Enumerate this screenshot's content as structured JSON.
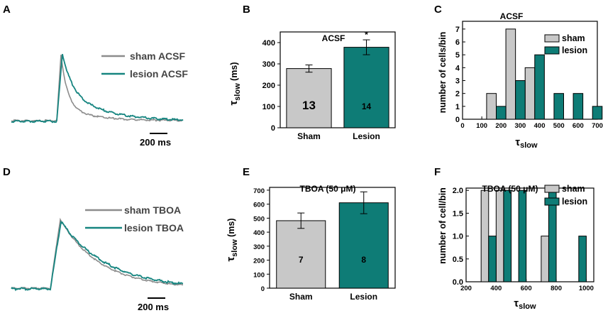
{
  "colors": {
    "sham": "#8c8c8c",
    "lesion": "#168580",
    "sham_fill": "#c8c8c8",
    "lesion_fill": "#0e7c76",
    "axis": "#000000"
  },
  "panels": {
    "A": {
      "letter": "A",
      "legend": [
        "sham ACSF",
        "lesion ACSF"
      ],
      "scale_label": "200 ms"
    },
    "D": {
      "letter": "D",
      "legend": [
        "sham TBOA",
        "lesion TBOA"
      ],
      "scale_label": "200 ms"
    },
    "B": {
      "letter": "B"
    },
    "E": {
      "letter": "E"
    },
    "C": {
      "letter": "C"
    },
    "F": {
      "letter": "F"
    }
  },
  "chart_data": [
    {
      "id": "B",
      "type": "bar",
      "title": "ACSF",
      "categories": [
        "Sham",
        "Lesion"
      ],
      "values": [
        278,
        378
      ],
      "errors": [
        17,
        35
      ],
      "n_labels": [
        "13",
        "14"
      ],
      "significance": [
        "",
        "*"
      ],
      "ylabel": {
        "main": "τ",
        "sub": "slow",
        "unit": " (ms)"
      },
      "ylim": [
        0,
        450
      ],
      "yticks": [
        0,
        100,
        200,
        300,
        400
      ]
    },
    {
      "id": "E",
      "type": "bar",
      "title": "TBOA (50 μM)",
      "categories": [
        "Sham",
        "Lesion"
      ],
      "values": [
        482,
        610
      ],
      "errors": [
        55,
        78
      ],
      "n_labels": [
        "7",
        "8"
      ],
      "significance": [
        "",
        ""
      ],
      "ylabel": {
        "main": "τ",
        "sub": "slow",
        "unit": " (ms)"
      },
      "ylim": [
        0,
        720
      ],
      "yticks": [
        0,
        100,
        200,
        300,
        400,
        500,
        600,
        700
      ]
    },
    {
      "id": "C",
      "type": "bar",
      "title": "ACSF",
      "ylabel": "number of cells/bin",
      "xlabel": {
        "main": "τ",
        "sub": "slow"
      },
      "xlim": [
        0,
        700
      ],
      "xticks": [
        0,
        100,
        200,
        300,
        400,
        500,
        600,
        700
      ],
      "ylim": [
        0,
        7.6
      ],
      "yticks": [
        0,
        1,
        2,
        3,
        4,
        5,
        6,
        7
      ],
      "bin_width": 50,
      "legend": [
        "sham",
        "lesion"
      ],
      "legend_position": "top-right",
      "series": [
        {
          "name": "sham",
          "x": [
            150,
            250,
            350
          ],
          "values": [
            2,
            7,
            4
          ]
        },
        {
          "name": "lesion",
          "x": [
            200,
            300,
            400,
            500,
            600,
            700
          ],
          "values": [
            1,
            3,
            5,
            2,
            2,
            1
          ]
        }
      ]
    },
    {
      "id": "F",
      "type": "bar",
      "title": "TBOA (50 μM)",
      "ylabel": "number of cell/bin",
      "xlabel": {
        "main": "τ",
        "sub": "slow"
      },
      "xlim": [
        200,
        1050
      ],
      "xticks": [
        200,
        400,
        600,
        800,
        1000
      ],
      "ylim": [
        0,
        2.05
      ],
      "yticks": [
        "0.0",
        "0.5",
        "1.0",
        "1.5",
        "2.0"
      ],
      "bin_width": 50,
      "legend": [
        "sham",
        "lesion"
      ],
      "legend_position": "top-right",
      "series": [
        {
          "name": "sham",
          "x": [
            325,
            425,
            475,
            725
          ],
          "values": [
            2,
            2,
            2,
            1
          ]
        },
        {
          "name": "lesion",
          "x": [
            375,
            475,
            575,
            775,
            975
          ],
          "values": [
            1,
            2,
            2,
            2,
            1
          ]
        }
      ]
    }
  ]
}
